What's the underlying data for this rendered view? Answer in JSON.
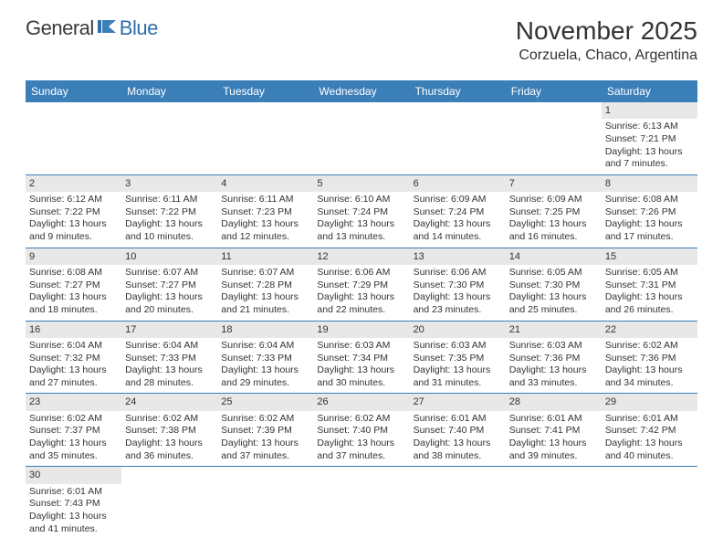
{
  "logo": {
    "text1": "General",
    "text2": "Blue"
  },
  "title": "November 2025",
  "location": "Corzuela, Chaco, Argentina",
  "colors": {
    "header_bg": "#3b7fb8",
    "header_text": "#ffffff",
    "daynum_bg": "#e8e8e8",
    "text": "#333333",
    "border": "#3b7fb8",
    "page_bg": "#ffffff"
  },
  "fonts": {
    "title_size": 28,
    "location_size": 16,
    "dayheader_size": 12,
    "cell_size": 10.5
  },
  "day_headers": [
    "Sunday",
    "Monday",
    "Tuesday",
    "Wednesday",
    "Thursday",
    "Friday",
    "Saturday"
  ],
  "weeks": [
    [
      null,
      null,
      null,
      null,
      null,
      null,
      {
        "num": "1",
        "sunrise": "Sunrise: 6:13 AM",
        "sunset": "Sunset: 7:21 PM",
        "daylight": "Daylight: 13 hours and 7 minutes."
      }
    ],
    [
      {
        "num": "2",
        "sunrise": "Sunrise: 6:12 AM",
        "sunset": "Sunset: 7:22 PM",
        "daylight": "Daylight: 13 hours and 9 minutes."
      },
      {
        "num": "3",
        "sunrise": "Sunrise: 6:11 AM",
        "sunset": "Sunset: 7:22 PM",
        "daylight": "Daylight: 13 hours and 10 minutes."
      },
      {
        "num": "4",
        "sunrise": "Sunrise: 6:11 AM",
        "sunset": "Sunset: 7:23 PM",
        "daylight": "Daylight: 13 hours and 12 minutes."
      },
      {
        "num": "5",
        "sunrise": "Sunrise: 6:10 AM",
        "sunset": "Sunset: 7:24 PM",
        "daylight": "Daylight: 13 hours and 13 minutes."
      },
      {
        "num": "6",
        "sunrise": "Sunrise: 6:09 AM",
        "sunset": "Sunset: 7:24 PM",
        "daylight": "Daylight: 13 hours and 14 minutes."
      },
      {
        "num": "7",
        "sunrise": "Sunrise: 6:09 AM",
        "sunset": "Sunset: 7:25 PM",
        "daylight": "Daylight: 13 hours and 16 minutes."
      },
      {
        "num": "8",
        "sunrise": "Sunrise: 6:08 AM",
        "sunset": "Sunset: 7:26 PM",
        "daylight": "Daylight: 13 hours and 17 minutes."
      }
    ],
    [
      {
        "num": "9",
        "sunrise": "Sunrise: 6:08 AM",
        "sunset": "Sunset: 7:27 PM",
        "daylight": "Daylight: 13 hours and 18 minutes."
      },
      {
        "num": "10",
        "sunrise": "Sunrise: 6:07 AM",
        "sunset": "Sunset: 7:27 PM",
        "daylight": "Daylight: 13 hours and 20 minutes."
      },
      {
        "num": "11",
        "sunrise": "Sunrise: 6:07 AM",
        "sunset": "Sunset: 7:28 PM",
        "daylight": "Daylight: 13 hours and 21 minutes."
      },
      {
        "num": "12",
        "sunrise": "Sunrise: 6:06 AM",
        "sunset": "Sunset: 7:29 PM",
        "daylight": "Daylight: 13 hours and 22 minutes."
      },
      {
        "num": "13",
        "sunrise": "Sunrise: 6:06 AM",
        "sunset": "Sunset: 7:30 PM",
        "daylight": "Daylight: 13 hours and 23 minutes."
      },
      {
        "num": "14",
        "sunrise": "Sunrise: 6:05 AM",
        "sunset": "Sunset: 7:30 PM",
        "daylight": "Daylight: 13 hours and 25 minutes."
      },
      {
        "num": "15",
        "sunrise": "Sunrise: 6:05 AM",
        "sunset": "Sunset: 7:31 PM",
        "daylight": "Daylight: 13 hours and 26 minutes."
      }
    ],
    [
      {
        "num": "16",
        "sunrise": "Sunrise: 6:04 AM",
        "sunset": "Sunset: 7:32 PM",
        "daylight": "Daylight: 13 hours and 27 minutes."
      },
      {
        "num": "17",
        "sunrise": "Sunrise: 6:04 AM",
        "sunset": "Sunset: 7:33 PM",
        "daylight": "Daylight: 13 hours and 28 minutes."
      },
      {
        "num": "18",
        "sunrise": "Sunrise: 6:04 AM",
        "sunset": "Sunset: 7:33 PM",
        "daylight": "Daylight: 13 hours and 29 minutes."
      },
      {
        "num": "19",
        "sunrise": "Sunrise: 6:03 AM",
        "sunset": "Sunset: 7:34 PM",
        "daylight": "Daylight: 13 hours and 30 minutes."
      },
      {
        "num": "20",
        "sunrise": "Sunrise: 6:03 AM",
        "sunset": "Sunset: 7:35 PM",
        "daylight": "Daylight: 13 hours and 31 minutes."
      },
      {
        "num": "21",
        "sunrise": "Sunrise: 6:03 AM",
        "sunset": "Sunset: 7:36 PM",
        "daylight": "Daylight: 13 hours and 33 minutes."
      },
      {
        "num": "22",
        "sunrise": "Sunrise: 6:02 AM",
        "sunset": "Sunset: 7:36 PM",
        "daylight": "Daylight: 13 hours and 34 minutes."
      }
    ],
    [
      {
        "num": "23",
        "sunrise": "Sunrise: 6:02 AM",
        "sunset": "Sunset: 7:37 PM",
        "daylight": "Daylight: 13 hours and 35 minutes."
      },
      {
        "num": "24",
        "sunrise": "Sunrise: 6:02 AM",
        "sunset": "Sunset: 7:38 PM",
        "daylight": "Daylight: 13 hours and 36 minutes."
      },
      {
        "num": "25",
        "sunrise": "Sunrise: 6:02 AM",
        "sunset": "Sunset: 7:39 PM",
        "daylight": "Daylight: 13 hours and 37 minutes."
      },
      {
        "num": "26",
        "sunrise": "Sunrise: 6:02 AM",
        "sunset": "Sunset: 7:40 PM",
        "daylight": "Daylight: 13 hours and 37 minutes."
      },
      {
        "num": "27",
        "sunrise": "Sunrise: 6:01 AM",
        "sunset": "Sunset: 7:40 PM",
        "daylight": "Daylight: 13 hours and 38 minutes."
      },
      {
        "num": "28",
        "sunrise": "Sunrise: 6:01 AM",
        "sunset": "Sunset: 7:41 PM",
        "daylight": "Daylight: 13 hours and 39 minutes."
      },
      {
        "num": "29",
        "sunrise": "Sunrise: 6:01 AM",
        "sunset": "Sunset: 7:42 PM",
        "daylight": "Daylight: 13 hours and 40 minutes."
      }
    ],
    [
      {
        "num": "30",
        "sunrise": "Sunrise: 6:01 AM",
        "sunset": "Sunset: 7:43 PM",
        "daylight": "Daylight: 13 hours and 41 minutes."
      },
      null,
      null,
      null,
      null,
      null,
      null
    ]
  ]
}
